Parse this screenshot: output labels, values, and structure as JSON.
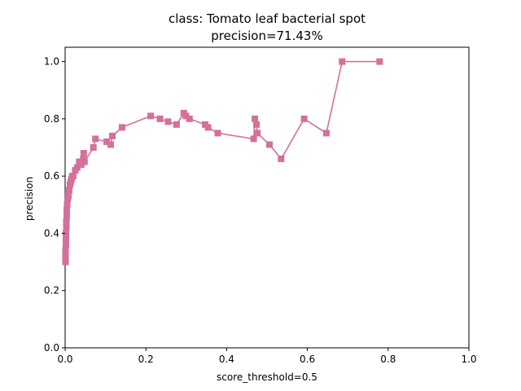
{
  "chart_data": {
    "type": "line",
    "title": "class: Tomato leaf bacterial spot",
    "subtitle": "precision=71.43%",
    "xlabel": "score_threshold=0.5",
    "ylabel": "precision",
    "xlim": [
      0.0,
      1.0
    ],
    "ylim": [
      0.0,
      1.05
    ],
    "xticks": [
      0.0,
      0.2,
      0.4,
      0.6,
      0.8,
      1.0
    ],
    "xtick_labels": [
      "0.0",
      "0.2",
      "0.4",
      "0.6",
      "0.8",
      "1.0"
    ],
    "yticks": [
      0.0,
      0.2,
      0.4,
      0.6,
      0.8,
      1.0
    ],
    "ytick_labels": [
      "0.0",
      "0.2",
      "0.4",
      "0.6",
      "0.8",
      "1.0"
    ],
    "grid": false,
    "marker": "square",
    "color": "#d4709a",
    "series": [
      {
        "x": [
          0.001,
          0.001,
          0.001,
          0.001,
          0.002,
          0.002,
          0.002,
          0.003,
          0.003,
          0.004,
          0.004,
          0.005,
          0.006,
          0.008,
          0.01,
          0.012,
          0.014,
          0.016,
          0.018,
          0.02,
          0.025,
          0.03,
          0.035,
          0.04,
          0.045,
          0.046,
          0.048,
          0.07,
          0.075,
          0.103,
          0.113,
          0.117,
          0.141,
          0.212,
          0.235,
          0.255,
          0.276,
          0.294,
          0.299,
          0.308,
          0.347,
          0.354,
          0.378,
          0.467,
          0.47,
          0.474,
          0.476,
          0.506,
          0.535,
          0.592,
          0.647,
          0.686,
          0.779
        ],
        "y": [
          0.3,
          0.31,
          0.32,
          0.34,
          0.36,
          0.38,
          0.4,
          0.42,
          0.44,
          0.46,
          0.48,
          0.5,
          0.52,
          0.53,
          0.55,
          0.57,
          0.58,
          0.59,
          0.6,
          0.6,
          0.62,
          0.63,
          0.65,
          0.64,
          0.66,
          0.68,
          0.65,
          0.7,
          0.73,
          0.72,
          0.71,
          0.74,
          0.77,
          0.81,
          0.8,
          0.79,
          0.78,
          0.82,
          0.81,
          0.8,
          0.78,
          0.77,
          0.75,
          0.73,
          0.8,
          0.78,
          0.75,
          0.71,
          0.66,
          0.8,
          0.75,
          1.0,
          1.0
        ]
      }
    ]
  }
}
